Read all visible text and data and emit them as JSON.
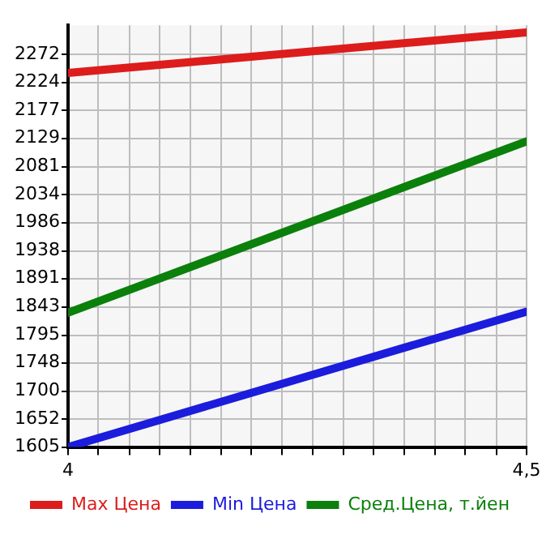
{
  "chart_data": {
    "type": "line",
    "x": [
      4,
      4.5
    ],
    "series": [
      {
        "name": "Max Цена",
        "color": "#dd1c1c",
        "values": [
          2240,
          2309
        ]
      },
      {
        "name": "Min Цена",
        "color": "#1c1cdd",
        "values": [
          1605,
          1835
        ]
      },
      {
        "name": "Сред.Цена, т.йен",
        "color": "#0b800b",
        "values": [
          1833,
          2124
        ]
      }
    ],
    "xlim": [
      4,
      4.5
    ],
    "xticks": [
      {
        "value": 4,
        "label": "4"
      },
      {
        "value": 4.033,
        "label": null
      },
      {
        "value": 4.067,
        "label": null
      },
      {
        "value": 4.1,
        "label": null
      },
      {
        "value": 4.133,
        "label": null
      },
      {
        "value": 4.167,
        "label": null
      },
      {
        "value": 4.2,
        "label": null
      },
      {
        "value": 4.233,
        "label": null
      },
      {
        "value": 4.267,
        "label": null
      },
      {
        "value": 4.3,
        "label": null
      },
      {
        "value": 4.333,
        "label": null
      },
      {
        "value": 4.367,
        "label": null
      },
      {
        "value": 4.4,
        "label": null
      },
      {
        "value": 4.433,
        "label": null
      },
      {
        "value": 4.467,
        "label": null
      },
      {
        "value": 4.5,
        "label": "4,5"
      }
    ],
    "ylim": [
      1605,
      2321
    ],
    "yticks": [
      1605,
      1652,
      1700,
      1748,
      1795,
      1843,
      1891,
      1938,
      1986,
      2034,
      2081,
      2129,
      2177,
      2224,
      2272
    ],
    "grid": true,
    "legend": "bottom",
    "marker": "none",
    "line_style": "solid"
  }
}
